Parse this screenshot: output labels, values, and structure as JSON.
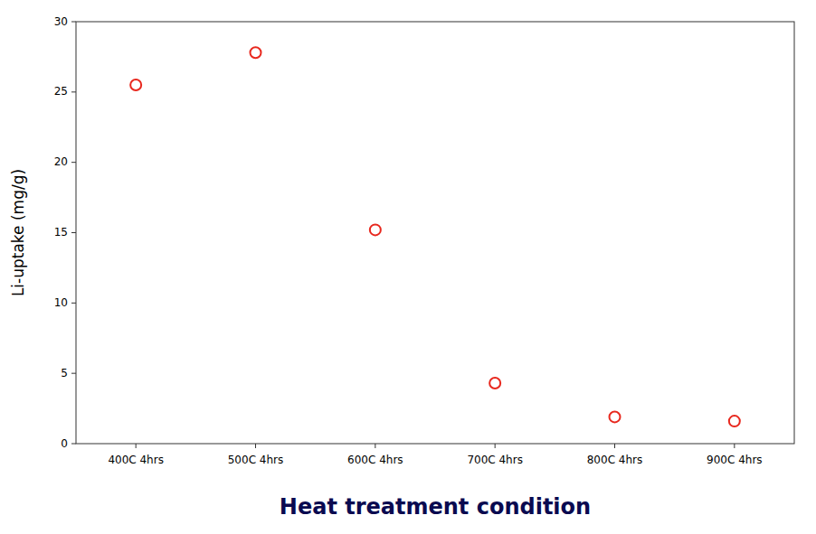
{
  "chart_data": {
    "type": "scatter",
    "categories": [
      "400C 4hrs",
      "500C 4hrs",
      "600C 4hrs",
      "700C 4hrs",
      "800C 4hrs",
      "900C 4hrs"
    ],
    "values": [
      25.5,
      27.8,
      15.2,
      4.3,
      1.9,
      1.6
    ],
    "color": "#e8281e",
    "marker": "circle",
    "x_label": "Heat treatment condition",
    "y_label": "Li-uptake (mg/g)",
    "ylim": [
      0,
      30
    ],
    "yticks": [
      0,
      5,
      10,
      15,
      20,
      25,
      30
    ],
    "grid": false
  }
}
